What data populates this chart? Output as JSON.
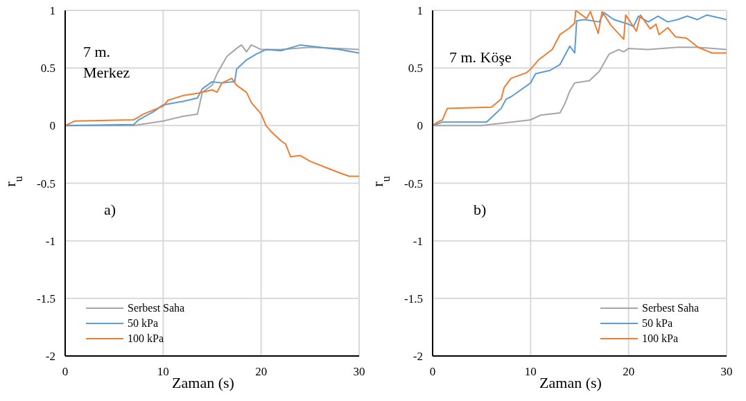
{
  "chart_data": [
    {
      "type": "line",
      "xlabel": "Zaman (s)",
      "ylabel": "r$_{u}$",
      "annotations": [
        "7 m.\nMerkez",
        "a)"
      ],
      "xlim": [
        0,
        30
      ],
      "xticks": [
        0,
        10,
        20,
        30
      ],
      "ylim": [
        -2,
        1
      ],
      "yticks": [
        -2,
        -1.5,
        -1,
        -0.5,
        0,
        0.5,
        1
      ],
      "grid": true,
      "legend": "bottom left",
      "line_style": "solid",
      "marker": "none",
      "series": [
        {
          "name": "Serbest Saha",
          "color": "#a5a5a5",
          "x": [
            0,
            7,
            10,
            12,
            13.5,
            14,
            15,
            15.5,
            16.5,
            17.5,
            18,
            18.5,
            19,
            20,
            22,
            25,
            28,
            30
          ],
          "values": [
            0,
            0,
            0.04,
            0.08,
            0.1,
            0.29,
            0.35,
            0.45,
            0.6,
            0.67,
            0.7,
            0.64,
            0.7,
            0.66,
            0.66,
            0.68,
            0.67,
            0.66
          ]
        },
        {
          "name": "50 kPa",
          "color": "#5b9bd5",
          "x": [
            0,
            7,
            7.5,
            9,
            10,
            12,
            13.5,
            14,
            15,
            16,
            17,
            17.3,
            17.5,
            18.5,
            19.5,
            20.5,
            22,
            24,
            26,
            28,
            30
          ],
          "values": [
            0,
            0.01,
            0.05,
            0.12,
            0.18,
            0.21,
            0.24,
            0.32,
            0.38,
            0.37,
            0.38,
            0.38,
            0.49,
            0.57,
            0.62,
            0.66,
            0.65,
            0.7,
            0.68,
            0.66,
            0.63
          ]
        },
        {
          "name": "100 kPa",
          "color": "#ed7d31",
          "x": [
            0,
            1,
            7,
            8,
            10,
            10.5,
            12,
            13.5,
            14.5,
            15,
            15.5,
            16,
            17,
            17.5,
            18.5,
            19,
            20,
            20.5,
            21,
            22,
            22.5,
            23,
            24,
            25,
            26.5,
            28,
            29,
            30
          ],
          "values": [
            0,
            0.04,
            0.05,
            0.1,
            0.17,
            0.22,
            0.26,
            0.28,
            0.3,
            0.31,
            0.29,
            0.37,
            0.41,
            0.35,
            0.29,
            0.2,
            0.1,
            0,
            -0.05,
            -0.13,
            -0.16,
            -0.27,
            -0.26,
            -0.31,
            -0.36,
            -0.41,
            -0.44,
            -0.44
          ]
        }
      ]
    },
    {
      "type": "line",
      "xlabel": "Zaman (s)",
      "ylabel": "r$_{u}$",
      "annotations": [
        "7 m. Köşe",
        "b)"
      ],
      "xlim": [
        0,
        30
      ],
      "xticks": [
        0,
        10,
        20,
        30
      ],
      "ylim": [
        -2,
        1
      ],
      "yticks": [
        -2,
        -1.5,
        -1,
        -0.5,
        0,
        0.5,
        1
      ],
      "grid": true,
      "legend": "bottom right",
      "line_style": "solid",
      "marker": "none",
      "series": [
        {
          "name": "Serbest Saha",
          "color": "#a5a5a5",
          "x": [
            0,
            5,
            7,
            9,
            10,
            11,
            13,
            13.5,
            14,
            14.5,
            16,
            17,
            18,
            19,
            19.5,
            20,
            22,
            25,
            27,
            30
          ],
          "values": [
            0,
            0,
            0.02,
            0.04,
            0.05,
            0.09,
            0.11,
            0.19,
            0.3,
            0.37,
            0.39,
            0.47,
            0.62,
            0.66,
            0.64,
            0.67,
            0.66,
            0.68,
            0.68,
            0.66
          ]
        },
        {
          "name": "50 kPa",
          "color": "#5b9bd5",
          "x": [
            0,
            1,
            5.5,
            6,
            7,
            7.5,
            8,
            9,
            10,
            10.5,
            12,
            13,
            14,
            14.5,
            14.7,
            15.5,
            17,
            17.5,
            18.5,
            20,
            20.5,
            21,
            22,
            23,
            24,
            25,
            26,
            27,
            28,
            29,
            30
          ],
          "values": [
            0,
            0.03,
            0.03,
            0.07,
            0.15,
            0.23,
            0.25,
            0.31,
            0.37,
            0.45,
            0.48,
            0.53,
            0.69,
            0.63,
            0.91,
            0.92,
            0.9,
            0.98,
            0.92,
            0.88,
            0.86,
            0.95,
            0.9,
            0.95,
            0.9,
            0.92,
            0.95,
            0.92,
            0.96,
            0.94,
            0.92
          ]
        },
        {
          "name": "100 kPa",
          "color": "#ed7d31",
          "x": [
            0,
            0.5,
            1,
            1.5,
            6,
            7,
            7.3,
            8,
            9.6,
            10,
            10.8,
            12.2,
            13,
            14,
            14.5,
            14.6,
            15.7,
            16.1,
            16.9,
            17.3,
            18.2,
            19.5,
            19.7,
            20.8,
            21.2,
            22.2,
            22.8,
            23.1,
            24,
            24.8,
            25.9,
            27.1,
            28.5,
            30
          ],
          "values": [
            0,
            0.03,
            0.05,
            0.15,
            0.16,
            0.23,
            0.33,
            0.41,
            0.46,
            0.49,
            0.57,
            0.66,
            0.79,
            0.85,
            0.89,
            1,
            0.93,
            0.99,
            0.8,
            0.99,
            0.87,
            0.75,
            0.96,
            0.82,
            0.96,
            0.84,
            0.88,
            0.79,
            0.85,
            0.77,
            0.76,
            0.68,
            0.63,
            0.63
          ]
        }
      ]
    }
  ]
}
